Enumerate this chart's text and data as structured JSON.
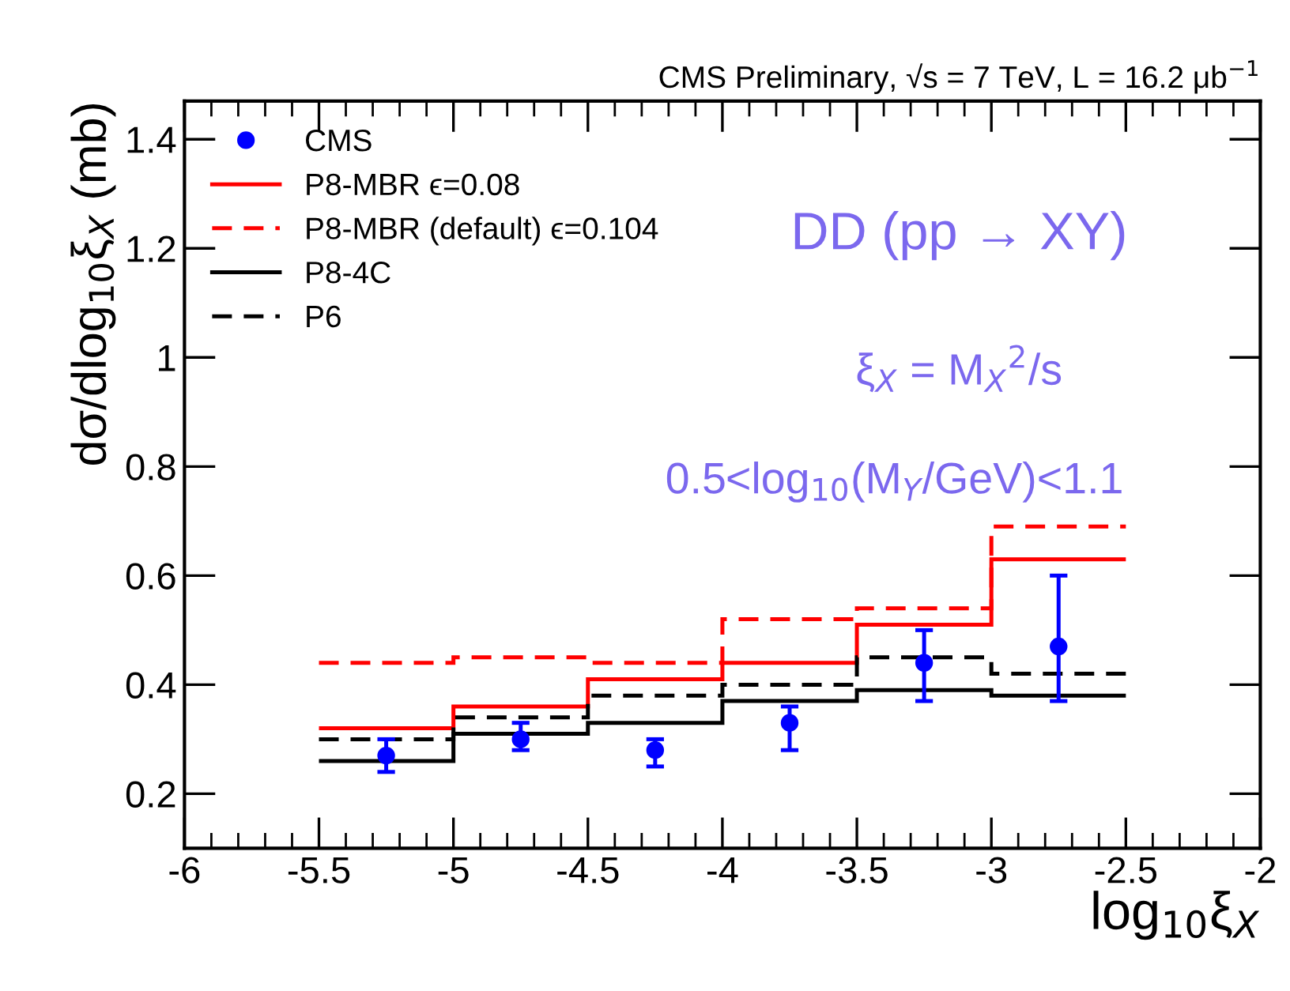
{
  "chart_data": {
    "type": "histogram",
    "title": "CMS Preliminary, √s = 7 TeV, L = 16.2 μb$^{−1}$",
    "xlabel": "log$_{10}$ξ$_{X}$",
    "ylabel": "dσ/dlog$_{10}$ξ$_{X}$ (mb)",
    "bins": [
      -5.5,
      -5.0,
      -4.5,
      -4.0,
      -3.5,
      -3.0,
      -2.5
    ],
    "series": [
      {
        "name": "CMS",
        "type": "scatter",
        "color": "#0000ff",
        "marker": "circle",
        "x": [
          -5.25,
          -4.75,
          -4.25,
          -3.75,
          -3.25,
          -2.75
        ],
        "values": [
          0.27,
          0.3,
          0.28,
          0.33,
          0.44,
          0.47
        ],
        "errors": [
          [
            0.24,
            0.3
          ],
          [
            0.28,
            0.33
          ],
          [
            0.25,
            0.3
          ],
          [
            0.28,
            0.36
          ],
          [
            0.37,
            0.5
          ],
          [
            0.37,
            0.6
          ]
        ]
      },
      {
        "name": "P8-MBR ϵ=0.08",
        "color": "#ff0000",
        "line_style": "solid",
        "values": [
          0.32,
          0.36,
          0.41,
          0.44,
          0.51,
          0.63
        ]
      },
      {
        "name": "P8-MBR (default) ϵ=0.104",
        "color": "#ff0000",
        "line_style": "dashed",
        "values": [
          0.44,
          0.45,
          0.44,
          0.52,
          0.54,
          0.69
        ]
      },
      {
        "name": "P8-4C",
        "color": "#000000",
        "line_style": "solid",
        "values": [
          0.26,
          0.31,
          0.33,
          0.37,
          0.39,
          0.38
        ]
      },
      {
        "name": "P6",
        "color": "#000000",
        "line_style": "dashed",
        "values": [
          0.3,
          0.34,
          0.38,
          0.4,
          0.45,
          0.42
        ]
      }
    ],
    "xlim": [
      -6,
      -2
    ],
    "xticks": [
      -6,
      -5.5,
      -5,
      -4.5,
      -4,
      -3.5,
      -3,
      -2.5,
      -2
    ],
    "ylim": [
      0.1,
      1.47
    ],
    "yticks": [
      0.2,
      0.4,
      0.6,
      0.8,
      1,
      1.2,
      1.4
    ],
    "grid": false,
    "legend": "top left",
    "annotations": [
      "DD (pp → XY)",
      "ξ$_{X}$ = M$_{X}$$^{2}$/s",
      "0.5<log$_{10}$(M$_{Y}$/GeV)<1.1"
    ]
  }
}
